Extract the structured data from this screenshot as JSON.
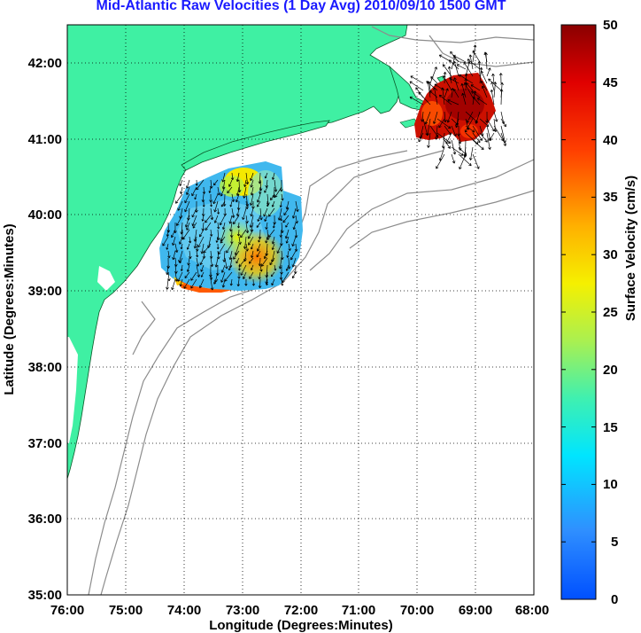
{
  "title": "Mid-Atlantic Raw Velocities (1 Day Avg) 2010/09/10 1500 GMT",
  "x_axis": {
    "label": "Longitude (Degrees:Minutes)",
    "ticks": [
      "76:00",
      "75:00",
      "74:00",
      "73:00",
      "72:00",
      "71:00",
      "70:00",
      "69:00",
      "68:00"
    ]
  },
  "y_axis": {
    "label": "Latitude (Degrees:Minutes)",
    "ticks": [
      "42:00",
      "41:00",
      "40:00",
      "39:00",
      "38:00",
      "37:00",
      "36:00",
      "35:00"
    ]
  },
  "colorbar": {
    "label": "Surface Velocity (cm/s)",
    "ticks": [
      "50",
      "45",
      "40",
      "35",
      "30",
      "25",
      "20",
      "15",
      "10",
      "5",
      "0"
    ],
    "colormap": "jet"
  },
  "colors": {
    "land": "#3ff0a3",
    "bathymetry": "#8c8c8c",
    "title": "#1a1aff"
  },
  "extent": {
    "lon": [
      -76,
      -68
    ],
    "lat": [
      35,
      42.5
    ]
  },
  "grid": "dotted"
}
